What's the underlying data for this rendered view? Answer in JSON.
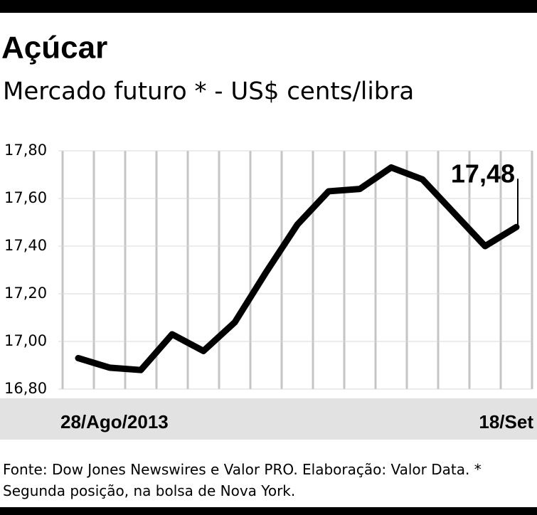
{
  "chart_data": {
    "type": "line",
    "title": "Açúcar",
    "subtitle": "Mercado futuro * - US$ cents/libra",
    "categories": [
      "28/Ago/2013",
      null,
      null,
      null,
      null,
      null,
      null,
      null,
      null,
      null,
      null,
      null,
      null,
      null,
      "18/Set"
    ],
    "series": [
      {
        "name": "Açúcar",
        "color": "#000000",
        "values": [
          16.93,
          16.89,
          16.88,
          17.03,
          16.96,
          17.08,
          17.29,
          17.49,
          17.63,
          17.64,
          17.73,
          17.68,
          17.54,
          17.4,
          17.48
        ],
        "value_labels": [
          null,
          null,
          null,
          null,
          null,
          null,
          null,
          null,
          null,
          null,
          null,
          null,
          null,
          null,
          "17,48"
        ]
      }
    ],
    "ylim": [
      16.8,
      17.8
    ],
    "yticks": [
      {
        "value": 16.8,
        "label": "16,80"
      },
      {
        "value": 17.0,
        "label": "17,00"
      },
      {
        "value": 17.2,
        "label": "17,20"
      },
      {
        "value": 17.4,
        "label": "17,40"
      },
      {
        "value": 17.6,
        "label": "17,60"
      },
      {
        "value": 17.8,
        "label": "17,80"
      }
    ],
    "grid": true,
    "source": "Fonte: Dow Jones Newswires e Valor PRO. Elaboração: Valor Data. * Segunda posição, na bolsa de Nova York."
  }
}
